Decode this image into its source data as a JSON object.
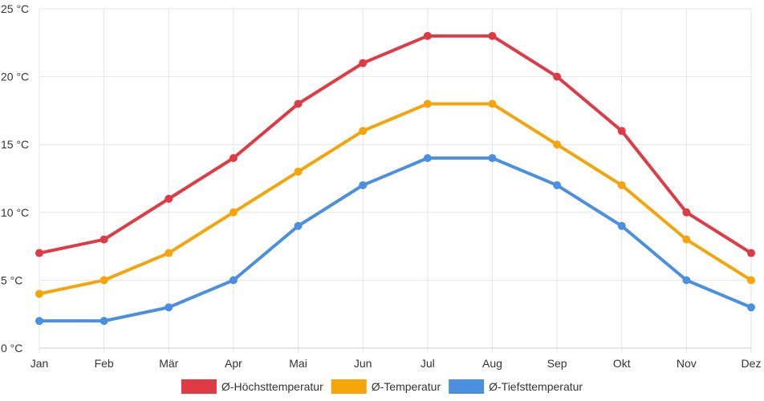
{
  "chart_data": {
    "type": "line",
    "title": "",
    "xlabel": "",
    "ylabel": "",
    "categories": [
      "Jan",
      "Feb",
      "Mär",
      "Apr",
      "Mai",
      "Jun",
      "Jul",
      "Aug",
      "Sep",
      "Okt",
      "Nov",
      "Dez"
    ],
    "ylim": [
      0,
      25
    ],
    "yticks": [
      0,
      5,
      10,
      15,
      20,
      25
    ],
    "ytick_labels": [
      "0 °C",
      "5 °C",
      "10 °C",
      "15 °C",
      "20 °C",
      "25 °C"
    ],
    "grid": true,
    "legend_position": "bottom-center",
    "series": [
      {
        "name": "Ø-Höchsttemperatur",
        "color": "#e03a44",
        "values": [
          7,
          8,
          11,
          14,
          18,
          21,
          23,
          23,
          20,
          16,
          10,
          7
        ]
      },
      {
        "name": "Ø-Temperatur",
        "color": "#f5a50a",
        "values": [
          4,
          5,
          7,
          10,
          13,
          16,
          18,
          18,
          15,
          12,
          8,
          5
        ]
      },
      {
        "name": "Ø-Tiefsttemperatur",
        "color": "#4a8fe0",
        "values": [
          2,
          2,
          3,
          5,
          9,
          12,
          14,
          14,
          12,
          9,
          5,
          3
        ]
      }
    ]
  }
}
